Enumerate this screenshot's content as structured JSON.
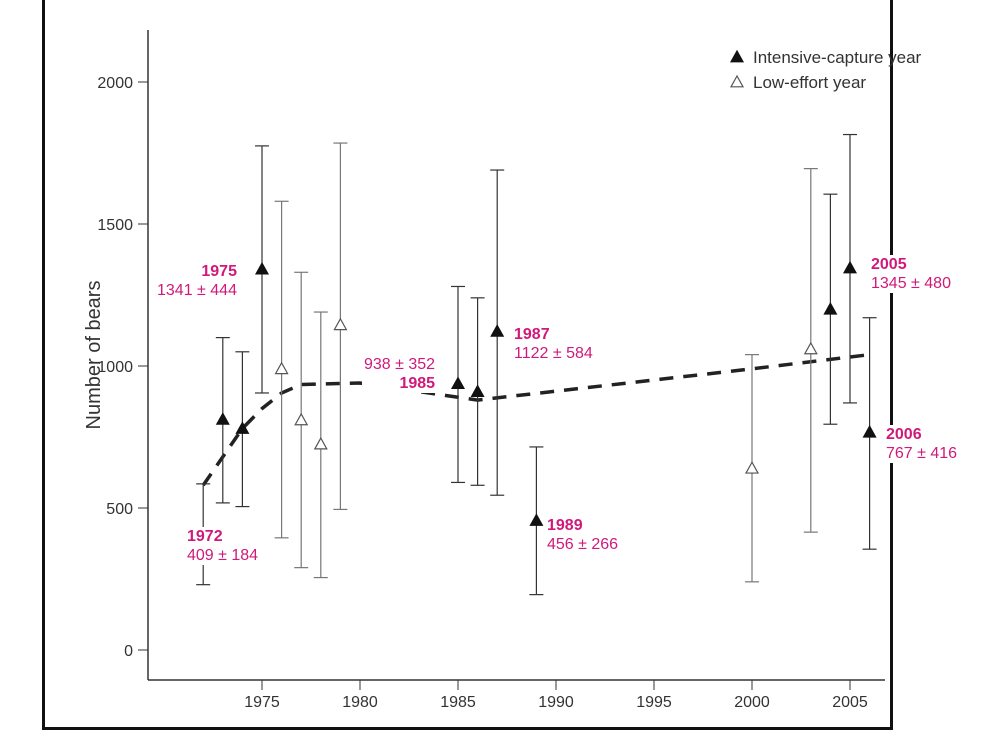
{
  "chart_data": {
    "type": "scatter",
    "ylabel": "Number of bears",
    "xlabel": "",
    "xlim": [
      1971,
      2007.5
    ],
    "ylim": [
      0,
      2200
    ],
    "x_ticks": [
      1975,
      1980,
      1985,
      1990,
      1995,
      2000,
      2005
    ],
    "y_ticks": [
      0,
      500,
      1000,
      1500,
      2000
    ],
    "grid": false,
    "legend_position": "top-right",
    "legend": [
      {
        "label": "Intensive-capture year",
        "marker": "filled-triangle"
      },
      {
        "label": "Low-effort year",
        "marker": "open-triangle"
      }
    ],
    "points": [
      {
        "year": 1972,
        "value": 409,
        "low": 230,
        "high": 585,
        "type": "intensive"
      },
      {
        "year": 1973,
        "value": 812,
        "low": 518,
        "high": 1100,
        "type": "intensive"
      },
      {
        "year": 1974,
        "value": 780,
        "low": 505,
        "high": 1050,
        "type": "intensive"
      },
      {
        "year": 1975,
        "value": 1341,
        "low": 905,
        "high": 1775,
        "type": "intensive"
      },
      {
        "year": 1976,
        "value": 990,
        "low": 395,
        "high": 1580,
        "type": "low"
      },
      {
        "year": 1977,
        "value": 810,
        "low": 290,
        "high": 1330,
        "type": "low"
      },
      {
        "year": 1978,
        "value": 725,
        "low": 255,
        "high": 1190,
        "type": "low"
      },
      {
        "year": 1979,
        "value": 1145,
        "low": 495,
        "high": 1785,
        "type": "low"
      },
      {
        "year": 1985,
        "value": 938,
        "low": 590,
        "high": 1280,
        "type": "intensive"
      },
      {
        "year": 1986,
        "value": 910,
        "low": 580,
        "high": 1240,
        "type": "intensive"
      },
      {
        "year": 1987,
        "value": 1122,
        "low": 545,
        "high": 1690,
        "type": "intensive"
      },
      {
        "year": 1989,
        "value": 456,
        "low": 195,
        "high": 715,
        "type": "intensive"
      },
      {
        "year": 2000,
        "value": 640,
        "low": 240,
        "high": 1040,
        "type": "low"
      },
      {
        "year": 2003,
        "value": 1060,
        "low": 415,
        "high": 1695,
        "type": "low"
      },
      {
        "year": 2004,
        "value": 1200,
        "low": 795,
        "high": 1605,
        "type": "intensive"
      },
      {
        "year": 2005,
        "value": 1345,
        "low": 870,
        "high": 1815,
        "type": "intensive"
      },
      {
        "year": 2006,
        "value": 767,
        "low": 355,
        "high": 1170,
        "type": "intensive"
      }
    ],
    "trend_line": {
      "style": "dashed",
      "points": [
        [
          1972,
          580
        ],
        [
          1974,
          780
        ],
        [
          1975,
          850
        ],
        [
          1976,
          905
        ],
        [
          1977,
          935
        ],
        [
          1980,
          940
        ],
        [
          1985,
          890
        ],
        [
          1986,
          880
        ],
        [
          2000,
          990
        ],
        [
          2003,
          1015
        ],
        [
          2006,
          1040
        ]
      ]
    },
    "annotations": {
      "a1972": {
        "year": "1972",
        "value": "409 ± 184"
      },
      "a1975": {
        "year": "1975",
        "value": "1341 ± 444"
      },
      "a1985": {
        "year": "1985",
        "value": "938 ± 352"
      },
      "a1987": {
        "year": "1987",
        "value": "1122 ± 584"
      },
      "a1989": {
        "year": "1989",
        "value": "456 ± 266"
      },
      "a2005": {
        "year": "2005",
        "value": "1345 ± 480"
      },
      "a2006": {
        "year": "2006",
        "value": "767 ± 416"
      }
    },
    "colors": {
      "annotation": "#d0197a",
      "axis": "#333333",
      "marker": "#111111"
    }
  }
}
